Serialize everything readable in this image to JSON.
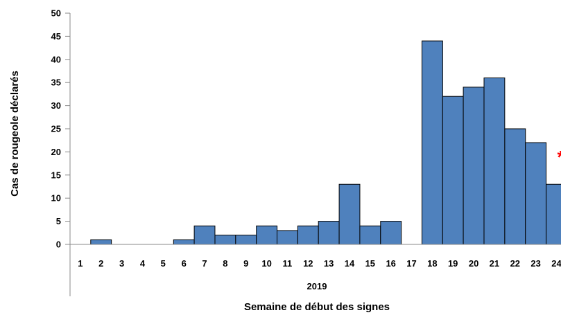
{
  "chart_data": {
    "type": "bar",
    "title": "",
    "ylabel": "Cas de rougeole déclarés",
    "xlabel": "Semaine de début des signes",
    "x_group_label": "2019",
    "ylim": [
      0,
      50
    ],
    "y_ticks": [
      0,
      5,
      10,
      15,
      20,
      25,
      30,
      35,
      40,
      45,
      50
    ],
    "categories": [
      "1",
      "2",
      "3",
      "4",
      "5",
      "6",
      "7",
      "8",
      "9",
      "10",
      "11",
      "12",
      "13",
      "14",
      "15",
      "16",
      "17",
      "18",
      "19",
      "20",
      "21",
      "22",
      "23",
      "24"
    ],
    "values": [
      0,
      1,
      0,
      0,
      0,
      1,
      4,
      2,
      2,
      4,
      3,
      4,
      5,
      13,
      4,
      5,
      0,
      44,
      32,
      34,
      36,
      25,
      22,
      13
    ],
    "bar_color": "#4f81bd",
    "bar_edge_color": "#000000",
    "grid": false,
    "annotation": {
      "text": "*",
      "category": "24",
      "color": "#ff0000"
    }
  }
}
